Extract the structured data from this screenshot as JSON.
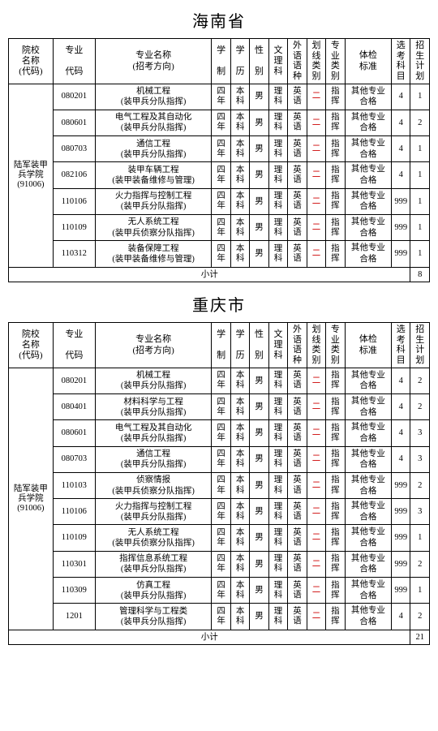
{
  "sections": [
    {
      "title": "海南省",
      "school": {
        "name": "陆军装甲兵学院",
        "code": "(91006)"
      },
      "subtotal_label": "小计",
      "subtotal_value": "8",
      "headers": {
        "school": [
          "院校",
          "名称",
          "(代码)"
        ],
        "code": [
          "专业",
          "",
          "代码"
        ],
        "major": [
          "专业名称",
          "(招考方向)"
        ],
        "xz": [
          "学",
          "",
          "制"
        ],
        "xl": [
          "学",
          "",
          "历"
        ],
        "xb": [
          "性",
          "",
          "别"
        ],
        "wl": [
          "文",
          "理",
          "科"
        ],
        "wy": [
          "外",
          "语",
          "语",
          "种"
        ],
        "hx": [
          "划",
          "线",
          "类",
          "别"
        ],
        "zy": [
          "专",
          "业",
          "类",
          "别"
        ],
        "tj": [
          "体检",
          "标准"
        ],
        "xk": [
          "选",
          "考",
          "科",
          "目"
        ],
        "zs": [
          "招",
          "生",
          "计",
          "划"
        ]
      },
      "rows": [
        {
          "code": "080201",
          "major": "机械工程",
          "dir": "(装甲兵分队指挥)",
          "xz": "四年",
          "xl": "本科",
          "xb": "男",
          "wl": "理科",
          "wy": "英语",
          "hx": "二",
          "zy": "指挥",
          "tj": "其他专业合格",
          "xk": "4",
          "zs": "1"
        },
        {
          "code": "080601",
          "major": "电气工程及其自动化",
          "dir": "(装甲兵分队指挥)",
          "xz": "四年",
          "xl": "本科",
          "xb": "男",
          "wl": "理科",
          "wy": "英语",
          "hx": "二",
          "zy": "指挥",
          "tj": "其他专业合格",
          "xk": "4",
          "zs": "2"
        },
        {
          "code": "080703",
          "major": "通信工程",
          "dir": "(装甲兵分队指挥)",
          "xz": "四年",
          "xl": "本科",
          "xb": "男",
          "wl": "理科",
          "wy": "英语",
          "hx": "二",
          "zy": "指挥",
          "tj": "其他专业合格",
          "xk": "4",
          "zs": "1"
        },
        {
          "code": "082106",
          "major": "装甲车辆工程",
          "dir": "(装甲装备维修与管理)",
          "xz": "四年",
          "xl": "本科",
          "xb": "男",
          "wl": "理科",
          "wy": "英语",
          "hx": "二",
          "zy": "指挥",
          "tj": "其他专业合格",
          "xk": "4",
          "zs": "1"
        },
        {
          "code": "110106",
          "major": "火力指挥与控制工程",
          "dir": "(装甲兵分队指挥)",
          "xz": "四年",
          "xl": "本科",
          "xb": "男",
          "wl": "理科",
          "wy": "英语",
          "hx": "二",
          "zy": "指挥",
          "tj": "其他专业合格",
          "xk": "999",
          "zs": "1"
        },
        {
          "code": "110109",
          "major": "无人系统工程",
          "dir": "(装甲兵侦察分队指挥)",
          "xz": "四年",
          "xl": "本科",
          "xb": "男",
          "wl": "理科",
          "wy": "英语",
          "hx": "二",
          "zy": "指挥",
          "tj": "其他专业合格",
          "xk": "999",
          "zs": "1"
        },
        {
          "code": "110312",
          "major": "装备保障工程",
          "dir": "(装甲装备维修与管理)",
          "xz": "四年",
          "xl": "本科",
          "xb": "男",
          "wl": "理科",
          "wy": "英语",
          "hx": "二",
          "zy": "指挥",
          "tj": "其他专业合格",
          "xk": "999",
          "zs": "1"
        }
      ]
    },
    {
      "title": "重庆市",
      "school": {
        "name": "陆军装甲兵学院",
        "code": "(91006)"
      },
      "subtotal_label": "小计",
      "subtotal_value": "21",
      "headers": {
        "school": [
          "院校",
          "名称",
          "(代码)"
        ],
        "code": [
          "专业",
          "",
          "代码"
        ],
        "major": [
          "专业名称",
          "(招考方向)"
        ],
        "xz": [
          "学",
          "",
          "制"
        ],
        "xl": [
          "学",
          "",
          "历"
        ],
        "xb": [
          "性",
          "",
          "别"
        ],
        "wl": [
          "文",
          "理",
          "科"
        ],
        "wy": [
          "外",
          "语",
          "语",
          "种"
        ],
        "hx": [
          "划",
          "线",
          "类",
          "别"
        ],
        "zy": [
          "专",
          "业",
          "类",
          "别"
        ],
        "tj": [
          "体检",
          "标准"
        ],
        "xk": [
          "选",
          "考",
          "科",
          "目"
        ],
        "zs": [
          "招",
          "生",
          "计",
          "划"
        ]
      },
      "rows": [
        {
          "code": "080201",
          "major": "机械工程",
          "dir": "(装甲兵分队指挥)",
          "xz": "四年",
          "xl": "本科",
          "xb": "男",
          "wl": "理科",
          "wy": "英语",
          "hx": "二",
          "zy": "指挥",
          "tj": "其他专业合格",
          "xk": "4",
          "zs": "2"
        },
        {
          "code": "080401",
          "major": "材料科学与工程",
          "dir": "(装甲兵分队指挥)",
          "xz": "四年",
          "xl": "本科",
          "xb": "男",
          "wl": "理科",
          "wy": "英语",
          "hx": "二",
          "zy": "指挥",
          "tj": "其他专业合格",
          "xk": "4",
          "zs": "2"
        },
        {
          "code": "080601",
          "major": "电气工程及其自动化",
          "dir": "(装甲兵分队指挥)",
          "xz": "四年",
          "xl": "本科",
          "xb": "男",
          "wl": "理科",
          "wy": "英语",
          "hx": "二",
          "zy": "指挥",
          "tj": "其他专业合格",
          "xk": "4",
          "zs": "3"
        },
        {
          "code": "080703",
          "major": "通信工程",
          "dir": "(装甲兵分队指挥)",
          "xz": "四年",
          "xl": "本科",
          "xb": "男",
          "wl": "理科",
          "wy": "英语",
          "hx": "二",
          "zy": "指挥",
          "tj": "其他专业合格",
          "xk": "4",
          "zs": "3"
        },
        {
          "code": "110103",
          "major": "侦察情报",
          "dir": "(装甲兵侦察分队指挥)",
          "xz": "四年",
          "xl": "本科",
          "xb": "男",
          "wl": "理科",
          "wy": "英语",
          "hx": "二",
          "zy": "指挥",
          "tj": "其他专业合格",
          "xk": "999",
          "zs": "2"
        },
        {
          "code": "110106",
          "major": "火力指挥与控制工程",
          "dir": "(装甲兵分队指挥)",
          "xz": "四年",
          "xl": "本科",
          "xb": "男",
          "wl": "理科",
          "wy": "英语",
          "hx": "二",
          "zy": "指挥",
          "tj": "其他专业合格",
          "xk": "999",
          "zs": "3"
        },
        {
          "code": "110109",
          "major": "无人系统工程",
          "dir": "(装甲兵侦察分队指挥)",
          "xz": "四年",
          "xl": "本科",
          "xb": "男",
          "wl": "理科",
          "wy": "英语",
          "hx": "二",
          "zy": "指挥",
          "tj": "其他专业合格",
          "xk": "999",
          "zs": "1"
        },
        {
          "code": "110301",
          "major": "指挥信息系统工程",
          "dir": "(装甲兵分队指挥)",
          "xz": "四年",
          "xl": "本科",
          "xb": "男",
          "wl": "理科",
          "wy": "英语",
          "hx": "二",
          "zy": "指挥",
          "tj": "其他专业合格",
          "xk": "999",
          "zs": "2"
        },
        {
          "code": "110309",
          "major": "仿真工程",
          "dir": "(装甲兵分队指挥)",
          "xz": "四年",
          "xl": "本科",
          "xb": "男",
          "wl": "理科",
          "wy": "英语",
          "hx": "二",
          "zy": "指挥",
          "tj": "其他专业合格",
          "xk": "999",
          "zs": "1"
        },
        {
          "code": "1201",
          "major": "管理科学与工程类",
          "dir": "(装甲兵分队指挥)",
          "xz": "四年",
          "xl": "本科",
          "xb": "男",
          "wl": "理科",
          "wy": "英语",
          "hx": "二",
          "zy": "指挥",
          "tj": "其他专业合格",
          "xk": "4",
          "zs": "2"
        }
      ]
    }
  ]
}
